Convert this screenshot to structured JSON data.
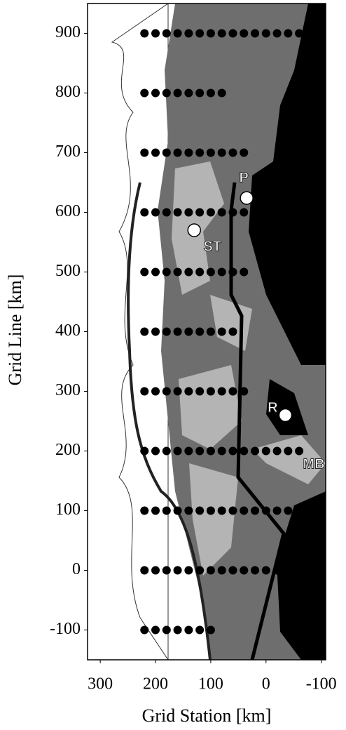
{
  "chart_data": {
    "type": "scatter",
    "x_label": "Grid Station [km]",
    "y_label": "Grid Line [km]",
    "xlim": [
      323,
      -108
    ],
    "ylim": [
      -150,
      950
    ],
    "xticks": [
      300,
      200,
      100,
      0,
      -100
    ],
    "yticks": [
      -100,
      0,
      100,
      200,
      300,
      400,
      500,
      600,
      700,
      800,
      900
    ],
    "color": "#000000",
    "rows": [
      {
        "line": 900,
        "stations": [
          220,
          200,
          180,
          160,
          140,
          120,
          100,
          80,
          60,
          40,
          20,
          0,
          -20,
          -40,
          -60
        ]
      },
      {
        "line": 800,
        "stations": [
          220,
          200,
          180,
          160,
          140,
          120,
          100,
          80
        ]
      },
      {
        "line": 700,
        "stations": [
          220,
          200,
          180,
          160,
          140,
          120,
          100,
          80,
          60,
          40
        ]
      },
      {
        "line": 600,
        "stations": [
          220,
          200,
          180,
          160,
          140,
          120,
          100,
          80,
          60,
          40
        ]
      },
      {
        "line": 500,
        "stations": [
          220,
          200,
          180,
          160,
          140,
          120,
          100,
          80,
          60,
          40
        ]
      },
      {
        "line": 400,
        "stations": [
          220,
          200,
          180,
          160,
          140,
          120,
          100,
          80,
          60
        ]
      },
      {
        "line": 300,
        "stations": [
          220,
          200,
          180,
          160,
          140,
          120,
          100,
          80,
          60,
          40
        ]
      },
      {
        "line": 200,
        "stations": [
          220,
          200,
          180,
          160,
          140,
          120,
          100,
          80,
          60,
          40,
          20,
          0,
          -20,
          -40,
          -60
        ]
      },
      {
        "line": 100,
        "stations": [
          220,
          200,
          180,
          160,
          140,
          120,
          100,
          80,
          60,
          40,
          20,
          0,
          -20,
          -40
        ]
      },
      {
        "line": 0,
        "stations": [
          220,
          200,
          180,
          160,
          140,
          120,
          100,
          80,
          60,
          40,
          20,
          0,
          -20
        ]
      },
      {
        "line": -100,
        "stations": [
          220,
          200,
          180,
          160,
          140,
          120,
          100
        ]
      }
    ],
    "sites": [
      {
        "label": "P",
        "x": 35,
        "y": 624
      },
      {
        "label": "ST",
        "x": 130,
        "y": 570
      },
      {
        "label": "R",
        "x": -35,
        "y": 260
      }
    ],
    "region_label": "MB"
  }
}
